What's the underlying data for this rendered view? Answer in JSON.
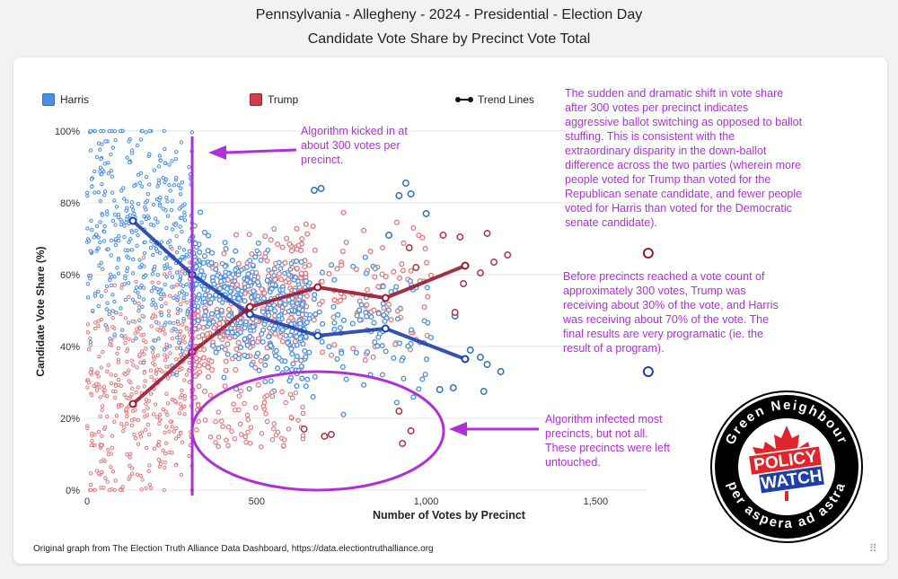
{
  "header": {
    "title": "Pennsylvania - Allegheny - 2024 - Presidential - Election Day",
    "subtitle": "Candidate Vote Share by Precinct Vote Total"
  },
  "legend": {
    "harris": "Harris",
    "trump": "Trump",
    "trend": "Trend Lines"
  },
  "colors": {
    "harris": "#4a8fe0",
    "harris_trend": "#1f3fa8",
    "trump": "#e07a80",
    "trump_trend": "#9a1a30",
    "annotation": "#b030d8"
  },
  "annotations": {
    "algorithm_start": "Algorithm kicked in at about 300 votes per precinct.",
    "shift_explanation": "The sudden and dramatic shift in vote share after 300 votes per precinct indicates aggressive ballot switching as opposed to ballot stuffing. This is consistent with the extraordinary disparity in the down-ballot difference across the two parties (wherein more people voted for Trump than voted for the Republican senate candidate, and fewer people voted for Harris than voted for the Democratic senate candidate).",
    "before_300": "Before precincts reached a vote count of approximately 300 votes, Trump was receiving about 30% of the vote, and Harris was receiving about 70% of the vote. The final results are very programatic (ie. the result of a program).",
    "untouched": "Algorithm infected most precincts, but not all. These precincts were left untouched."
  },
  "footer": "Original graph from The Election Truth Alliance Data Dashboard, https://data.electiontruthalliance.org",
  "logo": {
    "ring_top": "Green Neighbour",
    "ring_bottom": "per aspera ad astra",
    "line1": "POLICY",
    "line2": "WATCH"
  },
  "chart_data": {
    "type": "scatter",
    "xlabel": "Number of Votes by Precinct",
    "ylabel": "Candidate Vote Share (%)",
    "xlim": [
      0,
      1650
    ],
    "ylim": [
      0,
      100
    ],
    "x_ticks": [
      0,
      500,
      1000,
      1500
    ],
    "x_tick_labels": [
      "0",
      "500",
      "1,000",
      "1,500"
    ],
    "y_ticks": [
      0,
      20,
      40,
      60,
      80,
      100
    ],
    "y_tick_labels": [
      "0%",
      "20%",
      "40%",
      "60%",
      "80%",
      "100%"
    ],
    "marker_line_x": 310,
    "series": [
      {
        "name": "Harris",
        "trend": [
          [
            135,
            75
          ],
          [
            310,
            60
          ],
          [
            480,
            49
          ],
          [
            680,
            43
          ],
          [
            880,
            45
          ],
          [
            1115,
            36.5
          ]
        ],
        "outliers": [
          [
            940,
            85.5
          ],
          [
            955,
            82.5
          ],
          [
            690,
            84
          ],
          [
            670,
            83.5
          ],
          [
            920,
            82
          ],
          [
            1000,
            77
          ],
          [
            890,
            71
          ],
          [
            1085,
            48.5
          ],
          [
            1130,
            39
          ],
          [
            1160,
            37
          ],
          [
            1180,
            35
          ],
          [
            1220,
            33
          ],
          [
            1040,
            28
          ],
          [
            1080,
            28.5
          ],
          [
            1170,
            27.5
          ]
        ]
      },
      {
        "name": "Trump",
        "trend": [
          [
            135,
            24
          ],
          [
            310,
            38.5
          ],
          [
            480,
            51
          ],
          [
            680,
            56.5
          ],
          [
            880,
            53.5
          ],
          [
            1115,
            62.5
          ]
        ],
        "outliers": [
          [
            1180,
            71.5
          ],
          [
            1100,
            70.5
          ],
          [
            1050,
            71
          ],
          [
            1240,
            65.5
          ],
          [
            1200,
            63.5
          ],
          [
            1160,
            60.5
          ],
          [
            950,
            67.5
          ],
          [
            970,
            62
          ],
          [
            1110,
            57.5
          ],
          [
            1085,
            49.5
          ],
          [
            920,
            22
          ],
          [
            955,
            16.5
          ],
          [
            930,
            13
          ],
          [
            700,
            15
          ],
          [
            720,
            15.5
          ],
          [
            640,
            17
          ]
        ]
      }
    ],
    "extra_points": [
      {
        "series": "Trump",
        "x": 1655,
        "y": 66
      },
      {
        "series": "Harris",
        "x": 1655,
        "y": 33
      }
    ]
  }
}
